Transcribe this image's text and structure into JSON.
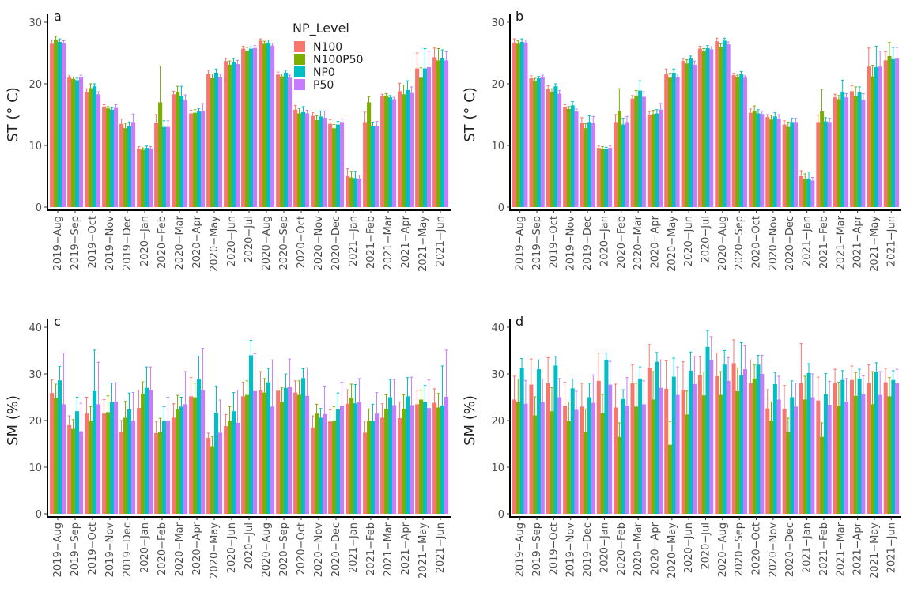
{
  "legend": {
    "title": "NP_Level",
    "items": [
      {
        "name": "N100",
        "color": "#F8766D"
      },
      {
        "name": "N100P50",
        "color": "#7CAE00"
      },
      {
        "name": "NP0",
        "color": "#00BFC4"
      },
      {
        "name": "P50",
        "color": "#C77CFF"
      }
    ]
  },
  "chart_data": [
    {
      "panel": "a",
      "type": "bar",
      "ylabel": "ST (° C)",
      "ylim": [
        0,
        30
      ],
      "yticks": [
        0,
        10,
        20,
        30
      ],
      "categories": [
        "2019−Aug",
        "2019−Sep",
        "2019−Oct",
        "2019−Nov",
        "2019−Dec",
        "2020−Jan",
        "2020−Feb",
        "2020−Mar",
        "2020−Apr",
        "2020−May",
        "2020−Jun",
        "2020−Jul",
        "2020−Aug",
        "2020−Sep",
        "2020−Oct",
        "2020−Nov",
        "2020−Dec",
        "2021−Jan",
        "2021−Feb",
        "2021−Mar",
        "2021−Apr",
        "2021−May",
        "2021−Jun"
      ],
      "series": [
        {
          "name": "N100",
          "values": [
            26.5,
            21.0,
            18.7,
            16.3,
            13.5,
            9.5,
            13.7,
            18.3,
            15.2,
            21.6,
            23.7,
            25.7,
            27.0,
            21.5,
            15.8,
            14.8,
            13.5,
            5.0,
            13.8,
            18.0,
            18.8,
            22.5,
            24.3
          ],
          "errors": [
            0.6,
            0.3,
            0.5,
            0.3,
            0.8,
            0.3,
            1.3,
            0.5,
            0.5,
            0.6,
            0.4,
            0.4,
            0.3,
            0.4,
            0.7,
            0.5,
            0.7,
            1.2,
            1.6,
            0.3,
            1.3,
            2.5,
            1.5
          ]
        },
        {
          "name": "N100P50",
          "values": [
            27.2,
            20.8,
            19.3,
            16.0,
            12.8,
            9.3,
            17.0,
            18.7,
            15.3,
            20.9,
            23.1,
            25.4,
            26.5,
            21.2,
            15.2,
            14.1,
            12.8,
            4.8,
            17.0,
            18.1,
            18.3,
            21.0,
            23.8
          ],
          "errors": [
            0.5,
            0.3,
            0.7,
            0.3,
            0.8,
            0.3,
            5.9,
            0.9,
            0.5,
            0.7,
            0.6,
            0.5,
            0.4,
            0.4,
            0.8,
            0.7,
            0.6,
            1.0,
            0.9,
            0.3,
            1.5,
            1.6,
            1.9
          ]
        },
        {
          "name": "NP0",
          "values": [
            26.8,
            20.6,
            19.6,
            15.8,
            13.1,
            9.6,
            13.0,
            18.0,
            15.5,
            21.8,
            23.5,
            25.7,
            26.7,
            21.8,
            15.4,
            14.7,
            13.4,
            4.7,
            13.1,
            17.8,
            19.0,
            22.5,
            24.1
          ],
          "errors": [
            0.5,
            0.3,
            0.4,
            0.4,
            0.7,
            0.3,
            1.0,
            1.6,
            0.5,
            0.6,
            0.6,
            0.3,
            0.4,
            0.4,
            0.9,
            0.9,
            0.5,
            1.1,
            0.7,
            0.3,
            1.5,
            3.2,
            1.4
          ]
        },
        {
          "name": "P50",
          "values": [
            26.6,
            21.1,
            18.3,
            16.2,
            13.8,
            9.5,
            13.0,
            17.3,
            15.6,
            21.1,
            23.2,
            25.8,
            26.2,
            21.0,
            15.2,
            14.5,
            13.8,
            4.6,
            13.2,
            17.5,
            18.5,
            22.7,
            23.8
          ],
          "errors": [
            0.4,
            0.3,
            0.4,
            0.4,
            1.3,
            0.3,
            1.0,
            0.9,
            1.2,
            0.5,
            0.6,
            0.4,
            0.4,
            0.4,
            0.5,
            1.1,
            0.5,
            0.6,
            0.7,
            0.3,
            1.0,
            2.6,
            1.4
          ]
        }
      ]
    },
    {
      "panel": "b",
      "type": "bar",
      "ylabel": "ST (° C)",
      "ylim": [
        0,
        30
      ],
      "yticks": [
        0,
        10,
        20,
        30
      ],
      "categories": [
        "2019−Aug",
        "2019−Sep",
        "2019−Oct",
        "2019−Nov",
        "2019−Dec",
        "2020−Jan",
        "2020−Feb",
        "2020−Mar",
        "2020−Apr",
        "2020−May",
        "2020−Jun",
        "2020−Jul",
        "2020−Aug",
        "2020−Sep",
        "2020−Oct",
        "2020−Nov",
        "2020−Dec",
        "2021−Jan",
        "2021−Feb",
        "2021−Mar",
        "2021−Apr",
        "2021−May",
        "2021−Jun"
      ],
      "series": [
        {
          "name": "N100",
          "values": [
            26.7,
            20.9,
            19.2,
            16.3,
            13.7,
            9.6,
            13.8,
            17.6,
            15.0,
            21.6,
            23.7,
            25.7,
            26.9,
            21.4,
            15.3,
            14.6,
            13.4,
            5.0,
            13.8,
            17.8,
            18.8,
            22.8,
            23.8
          ],
          "errors": [
            0.6,
            0.4,
            0.5,
            0.3,
            0.8,
            0.3,
            1.2,
            0.5,
            0.5,
            0.8,
            0.4,
            0.4,
            0.5,
            0.3,
            0.6,
            0.4,
            0.6,
            0.9,
            1.1,
            0.5,
            0.9,
            3.0,
            1.4
          ]
        },
        {
          "name": "N100P50",
          "values": [
            26.5,
            20.5,
            18.6,
            15.9,
            12.8,
            9.5,
            15.6,
            18.1,
            15.1,
            21.0,
            23.3,
            25.3,
            26.0,
            21.1,
            15.6,
            14.2,
            13.0,
            4.5,
            15.5,
            17.5,
            18.0,
            21.2,
            24.5
          ],
          "errors": [
            0.5,
            0.4,
            0.6,
            0.4,
            0.7,
            0.3,
            3.6,
            0.8,
            0.6,
            0.7,
            0.6,
            0.4,
            0.5,
            0.3,
            0.8,
            0.7,
            0.8,
            0.9,
            3.6,
            0.6,
            1.5,
            1.8,
            2.2
          ]
        },
        {
          "name": "NP0",
          "values": [
            26.8,
            20.9,
            19.6,
            16.5,
            13.8,
            9.4,
            13.4,
            18.9,
            15.2,
            21.8,
            24.1,
            25.8,
            27.0,
            21.6,
            15.2,
            14.7,
            13.8,
            4.6,
            13.9,
            18.7,
            18.6,
            22.7,
            24.0
          ],
          "errors": [
            0.5,
            0.3,
            0.4,
            0.6,
            1.0,
            0.3,
            1.0,
            1.6,
            0.6,
            0.6,
            0.4,
            0.4,
            0.4,
            0.4,
            0.6,
            0.6,
            0.6,
            1.1,
            0.6,
            1.9,
            0.9,
            3.4,
            1.9
          ]
        },
        {
          "name": "P50",
          "values": [
            26.7,
            21.1,
            18.4,
            15.5,
            13.6,
            9.6,
            13.8,
            17.9,
            15.8,
            21.1,
            23.1,
            25.6,
            26.4,
            21.0,
            15.1,
            14.3,
            13.8,
            4.3,
            13.8,
            17.8,
            17.4,
            22.8,
            24.1
          ],
          "errors": [
            0.4,
            0.3,
            0.5,
            0.4,
            1.1,
            0.3,
            0.9,
            0.8,
            1.0,
            0.5,
            0.6,
            0.4,
            0.4,
            0.3,
            0.5,
            0.7,
            0.6,
            0.5,
            0.6,
            0.6,
            1.0,
            2.5,
            1.8
          ]
        }
      ]
    },
    {
      "panel": "c",
      "type": "bar",
      "ylabel": "SM (%)",
      "ylim": [
        0,
        40
      ],
      "yticks": [
        0,
        10,
        20,
        30,
        40
      ],
      "categories": [
        "2019−Aug",
        "2019−Sep",
        "2019−Oct",
        "2019−Nov",
        "2019−Dec",
        "2020−Jan",
        "2020−Feb",
        "2020−Mar",
        "2020−Apr",
        "2020−May",
        "2020−Jun",
        "2020−Jul",
        "2020−Aug",
        "2020−Sep",
        "2020−Oct",
        "2020−Nov",
        "2020−Dec",
        "2021−Jan",
        "2021−Feb",
        "2021−Mar",
        "2021−Apr",
        "2021−May",
        "2021−Jun"
      ],
      "series": [
        {
          "name": "N100",
          "values": [
            25.9,
            19.0,
            21.5,
            21.5,
            17.5,
            22.7,
            17.3,
            20.6,
            25.2,
            16.3,
            18.8,
            25.2,
            26.5,
            26.4,
            26.0,
            18.5,
            19.8,
            23.6,
            17.4,
            20.6,
            20.5,
            23.5,
            23.8
          ],
          "errors": [
            2.8,
            2.0,
            3.5,
            3.0,
            2.5,
            3.8,
            2.5,
            3.0,
            4.0,
            1.0,
            2.5,
            3.0,
            4.0,
            2.5,
            2.5,
            2.5,
            2.5,
            3.0,
            2.5,
            3.0,
            3.5,
            3.0,
            3.0
          ]
        },
        {
          "name": "N100P50",
          "values": [
            24.8,
            18.2,
            20.0,
            21.8,
            20.6,
            25.8,
            17.5,
            22.4,
            25.0,
            14.5,
            20.0,
            25.5,
            26.0,
            24.0,
            25.5,
            21.5,
            20.0,
            24.8,
            20.0,
            22.5,
            22.5,
            24.5,
            22.8
          ],
          "errors": [
            3.0,
            2.0,
            3.0,
            3.5,
            3.5,
            2.5,
            3.0,
            3.0,
            3.0,
            2.0,
            3.0,
            3.0,
            3.0,
            3.0,
            3.0,
            2.0,
            3.0,
            3.0,
            2.5,
            3.0,
            3.0,
            2.0,
            3.0
          ]
        },
        {
          "name": "NP0",
          "values": [
            28.6,
            22.0,
            26.3,
            24.0,
            22.4,
            27.0,
            20.0,
            23.0,
            28.8,
            21.7,
            22.0,
            34.0,
            28.2,
            27.0,
            29.1,
            20.6,
            22.4,
            23.7,
            20.0,
            25.0,
            25.2,
            24.0,
            23.2
          ],
          "errors": [
            3.0,
            3.0,
            8.8,
            4.0,
            3.5,
            4.5,
            3.0,
            2.0,
            5.0,
            5.7,
            4.0,
            3.2,
            3.0,
            3.0,
            2.0,
            2.0,
            3.5,
            4.0,
            3.5,
            3.8,
            4.0,
            3.5,
            8.5
          ]
        },
        {
          "name": "P50",
          "values": [
            23.5,
            17.7,
            23.5,
            24.1,
            20.0,
            26.5,
            20.0,
            23.5,
            26.5,
            17.4,
            19.5,
            26.3,
            23.0,
            27.2,
            25.3,
            21.4,
            23.2,
            24.0,
            21.5,
            23.3,
            23.3,
            22.7,
            25.1
          ],
          "errors": [
            11.0,
            6.0,
            9.0,
            4.0,
            6.0,
            5.0,
            5.0,
            7.0,
            9.0,
            7.0,
            7.0,
            8.0,
            10.0,
            6.0,
            6.0,
            6.0,
            5.0,
            5.0,
            4.5,
            5.5,
            6.0,
            6.0,
            10.0
          ]
        }
      ]
    },
    {
      "panel": "d",
      "type": "bar",
      "ylabel": "SM (%)",
      "ylim": [
        0,
        40
      ],
      "yticks": [
        0,
        10,
        20,
        30,
        40
      ],
      "categories": [
        "2019−Aug",
        "2019−Sep",
        "2019−Oct",
        "2019−Nov",
        "2019−Dec",
        "2020−Jan",
        "2020−Feb",
        "2020−Mar",
        "2020−Apr",
        "2020−May",
        "2020−Jun",
        "2020−Jul",
        "2020−Aug",
        "2020−Sep",
        "2020−Oct",
        "2020−Nov",
        "2020−Dec",
        "2021−Jan",
        "2021−Feb",
        "2021−Mar",
        "2021−Apr",
        "2021−May",
        "2021−Jun"
      ],
      "series": [
        {
          "name": "N100",
          "values": [
            24.5,
            27.7,
            28.0,
            23.2,
            23.0,
            28.5,
            22.8,
            28.0,
            31.3,
            26.8,
            26.6,
            29.7,
            29.5,
            32.3,
            28.0,
            22.6,
            22.5,
            28.0,
            24.3,
            28.0,
            28.7,
            28.0,
            28.2
          ],
          "errors": [
            5.0,
            5.5,
            5.5,
            5.0,
            5.0,
            6.0,
            5.0,
            4.0,
            5.0,
            6.0,
            6.0,
            4.0,
            5.0,
            5.0,
            5.0,
            4.0,
            5.0,
            8.5,
            5.0,
            3.0,
            3.0,
            4.0,
            3.0
          ]
        },
        {
          "name": "N100P50",
          "values": [
            23.9,
            21.1,
            22.0,
            20.0,
            17.5,
            21.6,
            16.5,
            23.0,
            24.5,
            14.8,
            21.3,
            25.4,
            25.5,
            26.3,
            29.0,
            20.0,
            17.5,
            24.5,
            16.5,
            23.2,
            25.3,
            23.5,
            25.2
          ],
          "errors": [
            5.0,
            4.0,
            5.0,
            4.0,
            5.0,
            4.0,
            3.0,
            5.0,
            6.0,
            5.0,
            5.0,
            5.0,
            5.0,
            5.0,
            3.0,
            4.0,
            3.0,
            5.0,
            3.0,
            5.0,
            5.0,
            7.0,
            4.0
          ]
        },
        {
          "name": "NP0",
          "values": [
            31.3,
            31.0,
            31.8,
            26.9,
            25.0,
            33.0,
            24.6,
            29.0,
            32.6,
            29.4,
            30.7,
            35.8,
            32.0,
            29.7,
            32.0,
            27.8,
            25.0,
            30.2,
            25.6,
            28.7,
            29.0,
            30.4,
            28.7
          ],
          "errors": [
            2.0,
            2.0,
            2.0,
            2.0,
            3.0,
            1.5,
            2.0,
            2.5,
            2.0,
            4.0,
            4.0,
            3.5,
            3.0,
            7.0,
            2.0,
            2.5,
            3.5,
            2.0,
            4.5,
            2.0,
            2.0,
            2.0,
            2.0
          ]
        },
        {
          "name": "P50",
          "values": [
            23.6,
            23.9,
            25.0,
            22.3,
            23.8,
            27.7,
            23.2,
            23.5,
            27.0,
            25.5,
            27.8,
            33.0,
            28.5,
            31.0,
            30.0,
            24.5,
            23.0,
            25.0,
            23.4,
            24.0,
            25.6,
            25.5,
            28.0
          ],
          "errors": [
            5.0,
            5.0,
            4.0,
            4.0,
            6.0,
            5.0,
            6.0,
            5.0,
            6.0,
            6.0,
            6.0,
            5.0,
            5.0,
            5.0,
            4.0,
            5.0,
            5.0,
            5.0,
            5.0,
            5.0,
            4.0,
            5.0,
            3.0
          ]
        }
      ]
    }
  ]
}
